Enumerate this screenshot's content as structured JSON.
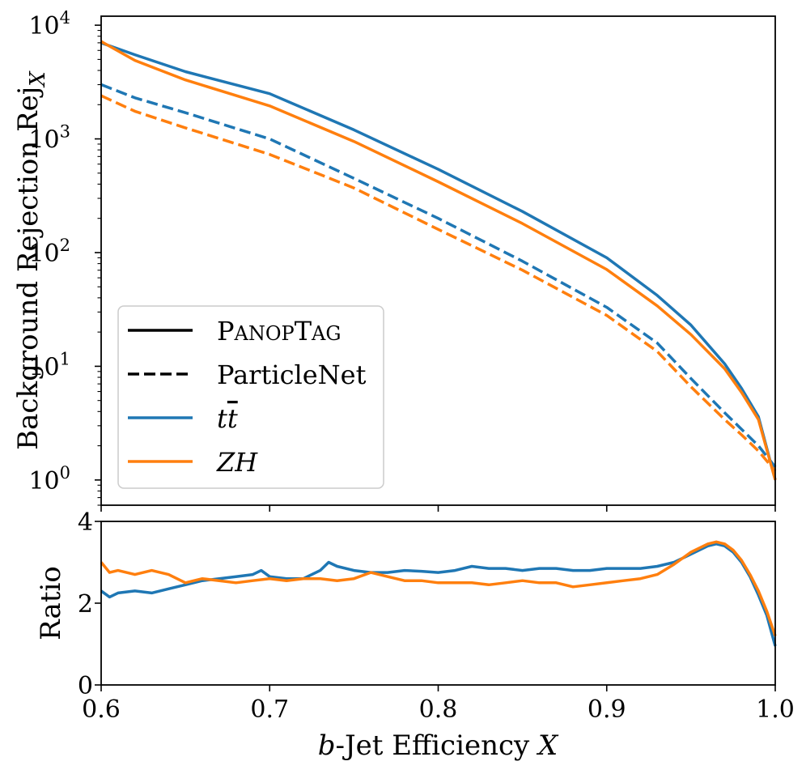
{
  "chart_data": [
    {
      "type": "line",
      "panel": "upper",
      "ylabel_main": "Background Rejection Rej",
      "ylabel_sub": "X",
      "yscale": "log",
      "xlim": [
        0.6,
        1.0
      ],
      "ylim": [
        0.6,
        12000
      ],
      "yticks": [
        {
          "value": 1,
          "base": "10",
          "exp": "0"
        },
        {
          "value": 10,
          "base": "10",
          "exp": "1"
        },
        {
          "value": 100,
          "base": "10",
          "exp": "2"
        },
        {
          "value": 1000,
          "base": "10",
          "exp": "3"
        },
        {
          "value": 10000,
          "base": "10",
          "exp": "4"
        }
      ],
      "grid": false,
      "legend": {
        "placement": "lower-left",
        "entries": [
          {
            "label": "PanopTag",
            "label_cap1": "P",
            "label_rest1": "ANOP",
            "label_cap2": "T",
            "label_rest2": "AG",
            "style": "solid",
            "color": "#000000"
          },
          {
            "label": "ParticleNet",
            "style": "dashed",
            "color": "#000000"
          },
          {
            "label_base": "t",
            "label_bar": "t",
            "style": "solid",
            "color": "#1f77b4"
          },
          {
            "label": "ZH",
            "style": "solid",
            "color": "#ff7f0e"
          }
        ]
      },
      "series": [
        {
          "model": "PanopTag",
          "sample": "tt",
          "color": "#1f77b4",
          "dash": "solid",
          "x": [
            0.6,
            0.62,
            0.65,
            0.7,
            0.75,
            0.8,
            0.85,
            0.9,
            0.93,
            0.95,
            0.97,
            0.98,
            0.99,
            1.0
          ],
          "y": [
            7000,
            5500,
            3900,
            2500,
            1200,
            540,
            230,
            90,
            42,
            23,
            10.5,
            6.4,
            3.6,
            1.0
          ]
        },
        {
          "model": "PanopTag",
          "sample": "ZH",
          "color": "#ff7f0e",
          "dash": "solid",
          "x": [
            0.6,
            0.62,
            0.65,
            0.7,
            0.75,
            0.8,
            0.85,
            0.9,
            0.93,
            0.95,
            0.97,
            0.98,
            0.99,
            1.0
          ],
          "y": [
            7200,
            4900,
            3300,
            1950,
            950,
            420,
            180,
            71,
            34,
            19,
            9.5,
            5.9,
            3.4,
            1.0
          ]
        },
        {
          "model": "ParticleNet",
          "sample": "tt",
          "color": "#1f77b4",
          "dash": "dashed",
          "x": [
            0.6,
            0.62,
            0.65,
            0.7,
            0.75,
            0.8,
            0.85,
            0.9,
            0.93,
            0.95,
            0.97,
            0.98,
            0.99,
            1.0
          ],
          "y": [
            3000,
            2300,
            1700,
            1000,
            450,
            200,
            84,
            33,
            16,
            7.8,
            3.9,
            2.8,
            2.0,
            1.3
          ]
        },
        {
          "model": "ParticleNet",
          "sample": "ZH",
          "color": "#ff7f0e",
          "dash": "dashed",
          "x": [
            0.6,
            0.62,
            0.65,
            0.7,
            0.75,
            0.8,
            0.85,
            0.9,
            0.93,
            0.95,
            0.97,
            0.98,
            0.99,
            1.0
          ],
          "y": [
            2400,
            1750,
            1250,
            730,
            370,
            160,
            70,
            28,
            13.5,
            6.6,
            3.4,
            2.5,
            1.8,
            1.2
          ]
        }
      ]
    },
    {
      "type": "line",
      "panel": "lower",
      "ylabel": "Ratio",
      "xlabel_var": "b",
      "xlabel_rest": "-Jet Efficiency",
      "xlabel_x": "X",
      "xlim": [
        0.6,
        1.0
      ],
      "ylim": [
        0,
        4
      ],
      "xticks": [
        "0.6",
        "0.7",
        "0.8",
        "0.9",
        "1.0"
      ],
      "yticks": [
        "0",
        "2",
        "4"
      ],
      "grid": false,
      "series": [
        {
          "sample": "tt",
          "color": "#1f77b4",
          "x": [
            0.6,
            0.605,
            0.61,
            0.62,
            0.63,
            0.64,
            0.65,
            0.66,
            0.67,
            0.68,
            0.69,
            0.695,
            0.7,
            0.71,
            0.72,
            0.73,
            0.735,
            0.74,
            0.75,
            0.76,
            0.77,
            0.78,
            0.79,
            0.8,
            0.81,
            0.82,
            0.83,
            0.84,
            0.85,
            0.86,
            0.87,
            0.88,
            0.89,
            0.9,
            0.91,
            0.92,
            0.93,
            0.94,
            0.95,
            0.96,
            0.965,
            0.97,
            0.975,
            0.98,
            0.985,
            0.99,
            0.995,
            1.0
          ],
          "y": [
            2.3,
            2.15,
            2.25,
            2.3,
            2.25,
            2.35,
            2.45,
            2.55,
            2.6,
            2.65,
            2.7,
            2.8,
            2.65,
            2.6,
            2.6,
            2.8,
            3.0,
            2.9,
            2.8,
            2.75,
            2.75,
            2.8,
            2.78,
            2.75,
            2.8,
            2.9,
            2.85,
            2.85,
            2.8,
            2.85,
            2.85,
            2.8,
            2.8,
            2.85,
            2.85,
            2.85,
            2.9,
            3.0,
            3.2,
            3.4,
            3.45,
            3.4,
            3.25,
            3.0,
            2.65,
            2.2,
            1.7,
            0.95
          ]
        },
        {
          "sample": "ZH",
          "color": "#ff7f0e",
          "x": [
            0.6,
            0.605,
            0.61,
            0.62,
            0.63,
            0.64,
            0.65,
            0.66,
            0.67,
            0.68,
            0.69,
            0.7,
            0.71,
            0.72,
            0.73,
            0.74,
            0.75,
            0.76,
            0.77,
            0.78,
            0.79,
            0.8,
            0.81,
            0.82,
            0.83,
            0.84,
            0.85,
            0.86,
            0.87,
            0.88,
            0.89,
            0.9,
            0.91,
            0.92,
            0.93,
            0.94,
            0.95,
            0.96,
            0.965,
            0.97,
            0.975,
            0.98,
            0.985,
            0.99,
            0.995,
            1.0
          ],
          "y": [
            3.0,
            2.75,
            2.8,
            2.7,
            2.8,
            2.7,
            2.5,
            2.6,
            2.55,
            2.5,
            2.55,
            2.6,
            2.55,
            2.6,
            2.6,
            2.55,
            2.6,
            2.75,
            2.65,
            2.55,
            2.55,
            2.5,
            2.5,
            2.5,
            2.45,
            2.5,
            2.55,
            2.5,
            2.5,
            2.4,
            2.45,
            2.5,
            2.55,
            2.6,
            2.7,
            2.95,
            3.25,
            3.45,
            3.5,
            3.45,
            3.3,
            3.05,
            2.7,
            2.3,
            1.8,
            1.2
          ]
        }
      ]
    }
  ]
}
